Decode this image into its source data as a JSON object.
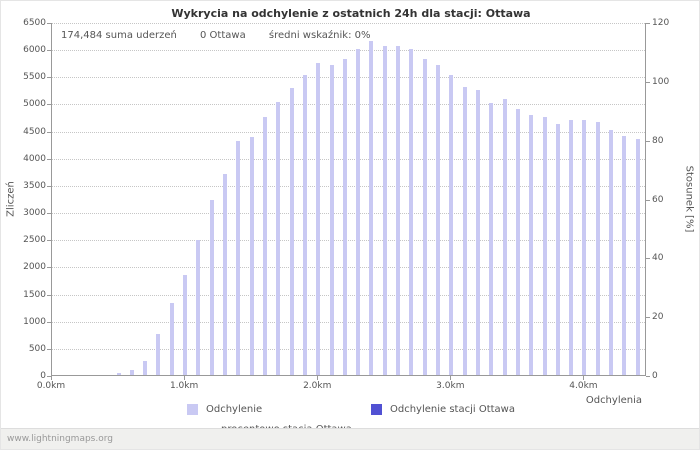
{
  "annotations": {
    "sum_label": "174,484 suma uderzeń",
    "station_label": "0 Ottawa",
    "ratio_label": "średni wskaźnik: 0%"
  },
  "watermark": "www.lightningmaps.org",
  "chart_data": {
    "type": "bar",
    "title": "Wykrycia na odchylenie z ostatnich 24h dla stacji: Ottawa",
    "xlabel": "Odchylenia",
    "ylabel_left": "Zliczeń",
    "ylabel_right": "Stosunek [%]",
    "ylim_left": [
      0,
      6500
    ],
    "ytick_step_left": 500,
    "ylim_right": [
      0,
      120
    ],
    "ytick_step_right": 20,
    "x_range_km": [
      0,
      4.47
    ],
    "x_ticks": [
      {
        "km": 0.0,
        "label": "0.0km"
      },
      {
        "km": 1.0,
        "label": "1.0km"
      },
      {
        "km": 2.0,
        "label": "2.0km"
      },
      {
        "km": 3.0,
        "label": "3.0km"
      },
      {
        "km": 4.0,
        "label": "4.0km"
      }
    ],
    "grid": true,
    "legend_position": "bottom",
    "x_start_km": 0.0,
    "x_step_km": 0.1,
    "series": [
      {
        "name": "Odchylenie",
        "type": "bar",
        "color": "#c9c9f3",
        "values": [
          0,
          0,
          0,
          0,
          0,
          30,
          100,
          260,
          760,
          1320,
          1850,
          2480,
          3220,
          3700,
          4300,
          4380,
          4750,
          5030,
          5280,
          5530,
          5750,
          5700,
          5820,
          6000,
          6150,
          6050,
          6050,
          6000,
          5820,
          5700,
          5530,
          5300,
          5250,
          5000,
          5080,
          4900,
          4780,
          4750,
          4620,
          4700,
          4700,
          4650,
          4520,
          4400,
          4350
        ]
      },
      {
        "name": "Odchylenie stacji Ottawa",
        "type": "bar",
        "color": "#5151d3",
        "values": []
      },
      {
        "name": "procentowo stacja Ottawa",
        "type": "line",
        "color": "#c800c8",
        "values": []
      }
    ]
  }
}
